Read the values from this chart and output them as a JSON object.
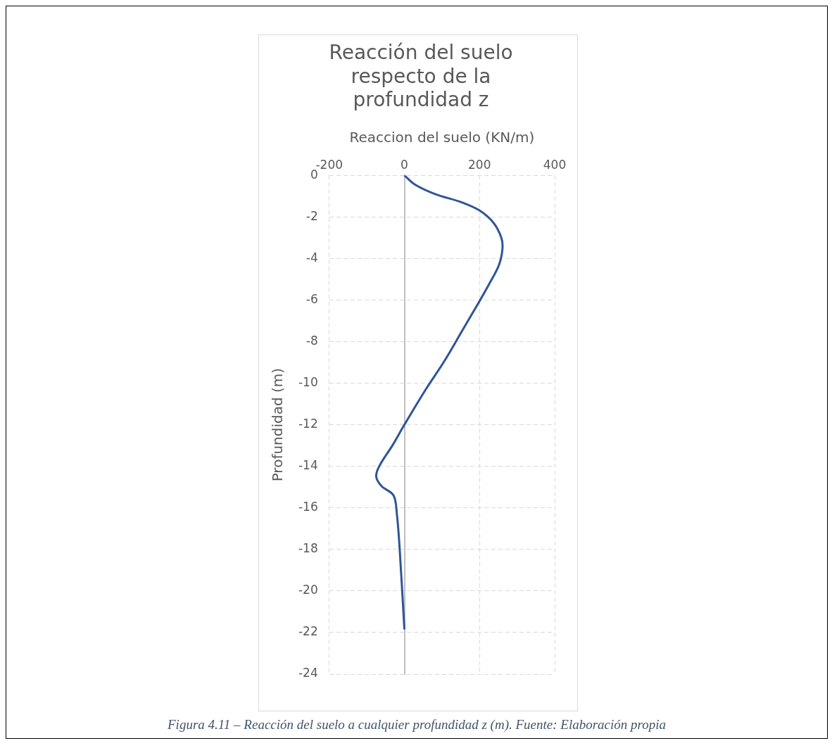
{
  "chart_data": {
    "type": "line",
    "title": "Reacción del suelo respecto de la profundidad z",
    "xlabel": "Reaccion del suelo (KN/m)",
    "ylabel": "Profundidad (m)",
    "x": [
      0,
      28,
      82,
      153,
      200,
      237,
      258,
      261,
      252,
      225,
      200,
      153,
      106,
      58,
      0,
      -32,
      -67,
      -75,
      -61,
      -29,
      -20,
      -12.5,
      0
    ],
    "series": [
      {
        "color": "#2f5597",
        "values": [
          0,
          -0.44,
          -0.9,
          -1.3,
          -1.69,
          -2.28,
          -3.0,
          -3.54,
          -4.3,
          -5.25,
          -6.05,
          -7.5,
          -8.95,
          -10.27,
          -12,
          -13,
          -14,
          -14.5,
          -14.95,
          -15.4,
          -16.3,
          -18,
          -21.85
        ]
      }
    ],
    "xlim": [
      -200,
      400
    ],
    "xticks": [
      -200,
      0,
      200,
      400
    ],
    "ylim": [
      -24,
      0
    ],
    "yticks": [
      0,
      -2,
      -4,
      -6,
      -8,
      -10,
      -12,
      -14,
      -16,
      -18,
      -20,
      -22,
      -24
    ],
    "grid": true,
    "legend": false,
    "marker": "none",
    "line_style": "solid",
    "annotations": [
      "Figura 4.11 – Reacción del suelo a cualquier profundidad z (m). Fuente: Elaboración propia"
    ]
  }
}
